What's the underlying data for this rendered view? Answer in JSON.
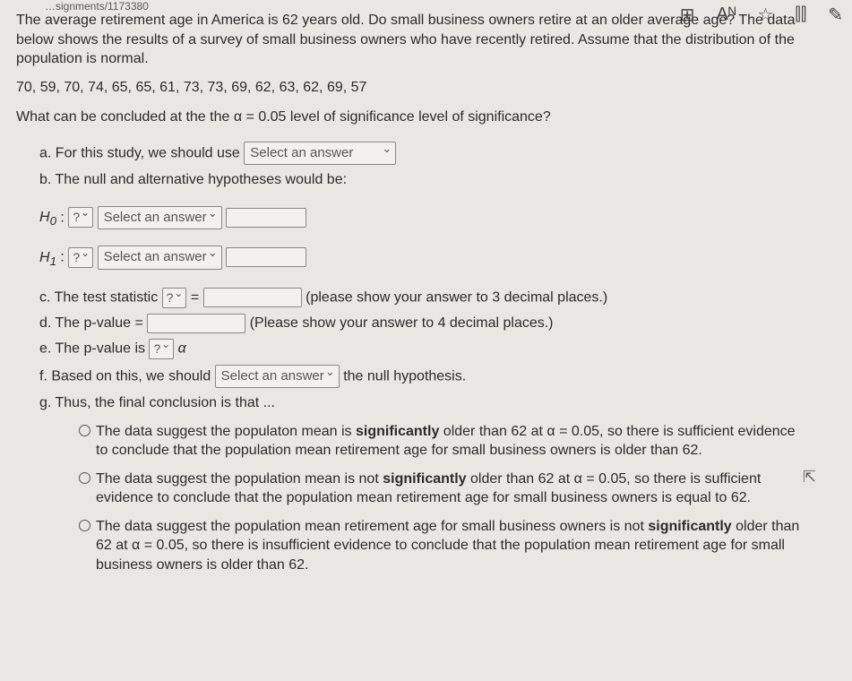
{
  "toolbar": {
    "url_fragment": "…signments/1173380",
    "icons": {
      "grid": "⊞",
      "text": "Aᴺ",
      "star": "☆",
      "book": "⫿⫿",
      "edit": "✎"
    }
  },
  "prompt": {
    "intro": "The average retirement age in America is 62 years old. Do small business owners retire at an older average age? The data below shows the results of a survey of small business owners who have recently retired. Assume that the distribution of the population is normal.",
    "data_values": "70, 59, 70, 74, 65, 65, 61, 73, 73, 69, 62, 63, 62, 69, 57",
    "question": "What can be concluded at the the α = 0.05 level of significance level of significance?"
  },
  "parts": {
    "a_label": "a. For this study, we should use",
    "a_select": "Select an answer",
    "b_label": "b. The null and alternative hypotheses would be:",
    "h0_prefix": "H",
    "h0_sub": "0",
    "h1_prefix": "H",
    "h1_sub": "1",
    "colon": " : ",
    "q_select": "?",
    "ans_select": "Select an answer",
    "c_label": "c. The test statistic",
    "c_equals": " = ",
    "c_hint": "(please show your answer to 3 decimal places.)",
    "d_label": "d. The p-value = ",
    "d_hint": "(Please show your answer to 4 decimal places.)",
    "e_label": "e. The p-value is ",
    "e_alpha": " α",
    "f_label": "f. Based on this, we should ",
    "f_select": "Select an answer",
    "f_tail": " the null hypothesis.",
    "g_label": "g. Thus, the final conclusion is that ..."
  },
  "choices": {
    "c1": "The data suggest the populaton mean is <b>significantly</b> older than 62 at α = 0.05, so there is sufficient evidence to conclude that the population mean retirement age for small business owners is older than 62.",
    "c2": "The data suggest the population mean is not <b>significantly</b> older than 62 at α = 0.05, so there is sufficient evidence to conclude that the population mean retirement age for small business owners is equal to 62.",
    "c3": "The data suggest the population mean retirement age for small business owners is not <b>significantly</b> older than 62 at α = 0.05, so there is insufficient evidence to conclude that the population mean retirement age for small business owners is older than 62."
  }
}
